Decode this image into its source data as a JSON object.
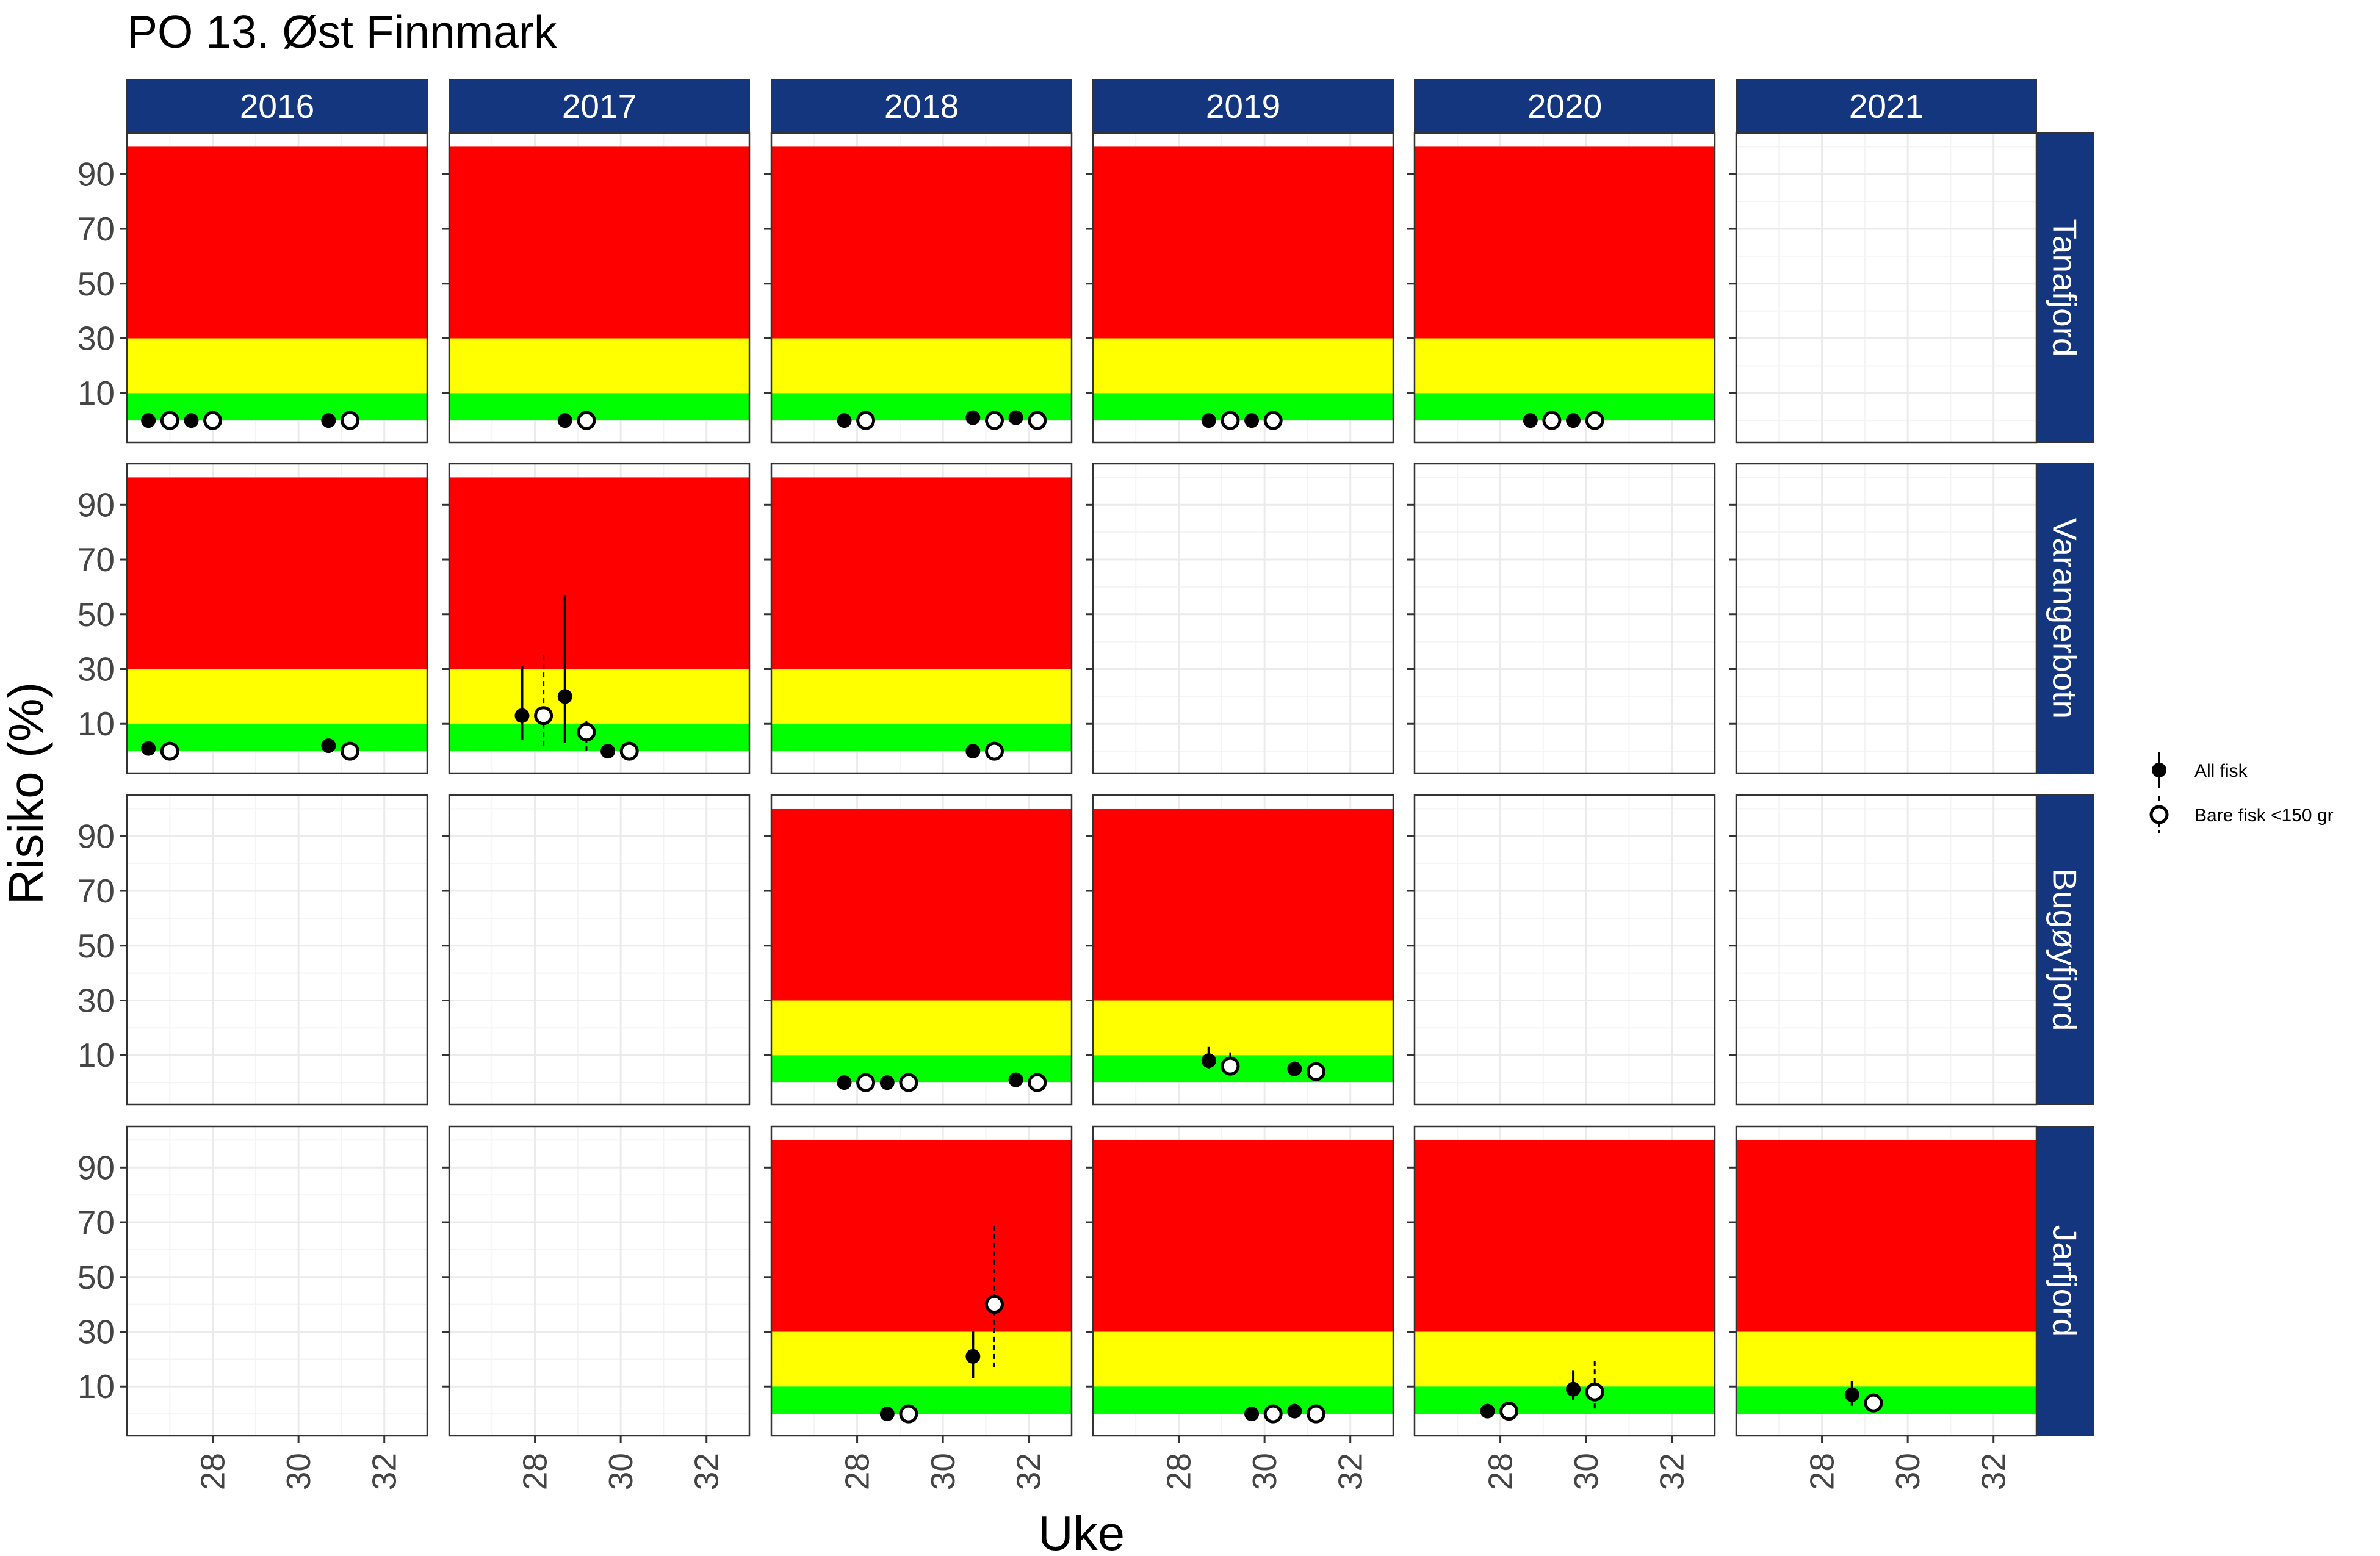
{
  "chart_data": {
    "type": "scatter",
    "title": "PO 13. Øst Finnmark",
    "xlabel": "Uke",
    "ylabel": "Risiko (%)",
    "xlim": [
      26,
      33
    ],
    "ylim": [
      -8,
      105
    ],
    "x_ticks": [
      28,
      30,
      32
    ],
    "y_ticks": [
      10,
      30,
      50,
      70,
      90
    ],
    "grid": true,
    "legend_position": "right",
    "risk_bands": [
      {
        "name": "green",
        "from": 0,
        "to": 10,
        "color": "#00FF00"
      },
      {
        "name": "yellow",
        "from": 10,
        "to": 30,
        "color": "#FFFF00"
      },
      {
        "name": "red",
        "from": 30,
        "to": 100,
        "color": "#FF0000"
      }
    ],
    "years": [
      "2016",
      "2017",
      "2018",
      "2019",
      "2020",
      "2021"
    ],
    "locations": [
      "Tanafjord",
      "Varangerbotn",
      "Bugøyfjord",
      "Jarfjord"
    ],
    "series": [
      {
        "name": "All fisk",
        "marker": "filled",
        "line": "solid"
      },
      {
        "name": "Bare fisk <150 gr",
        "marker": "open",
        "line": "dashed"
      }
    ],
    "panels": [
      {
        "location": "Tanafjord",
        "year": "2016",
        "bands": true,
        "all_fisk": [
          {
            "x": 26.5,
            "y": 0
          },
          {
            "x": 27.5,
            "y": 0
          },
          {
            "x": 30.7,
            "y": 0
          }
        ],
        "bare_fisk": [
          {
            "x": 27.0,
            "y": 0
          },
          {
            "x": 28.0,
            "y": 0
          },
          {
            "x": 31.2,
            "y": 0
          }
        ]
      },
      {
        "location": "Tanafjord",
        "year": "2017",
        "bands": true,
        "all_fisk": [
          {
            "x": 28.7,
            "y": 0
          }
        ],
        "bare_fisk": [
          {
            "x": 29.2,
            "y": 0
          }
        ]
      },
      {
        "location": "Tanafjord",
        "year": "2018",
        "bands": true,
        "all_fisk": [
          {
            "x": 27.7,
            "y": 0
          },
          {
            "x": 30.7,
            "y": 1
          },
          {
            "x": 31.7,
            "y": 1
          }
        ],
        "bare_fisk": [
          {
            "x": 28.2,
            "y": 0
          },
          {
            "x": 31.2,
            "y": 0
          },
          {
            "x": 32.2,
            "y": 0
          }
        ]
      },
      {
        "location": "Tanafjord",
        "year": "2019",
        "bands": true,
        "all_fisk": [
          {
            "x": 28.7,
            "y": 0
          },
          {
            "x": 29.7,
            "y": 0
          }
        ],
        "bare_fisk": [
          {
            "x": 29.2,
            "y": 0
          },
          {
            "x": 30.2,
            "y": 0
          }
        ]
      },
      {
        "location": "Tanafjord",
        "year": "2020",
        "bands": true,
        "all_fisk": [
          {
            "x": 28.7,
            "y": 0
          },
          {
            "x": 29.7,
            "y": 0
          }
        ],
        "bare_fisk": [
          {
            "x": 29.2,
            "y": 0
          },
          {
            "x": 30.2,
            "y": 0
          }
        ]
      },
      {
        "location": "Tanafjord",
        "year": "2021",
        "bands": false,
        "all_fisk": [],
        "bare_fisk": []
      },
      {
        "location": "Varangerbotn",
        "year": "2016",
        "bands": true,
        "all_fisk": [
          {
            "x": 26.5,
            "y": 1
          },
          {
            "x": 30.7,
            "y": 2
          }
        ],
        "bare_fisk": [
          {
            "x": 27.0,
            "y": 0
          },
          {
            "x": 31.2,
            "y": 0
          }
        ]
      },
      {
        "location": "Varangerbotn",
        "year": "2017",
        "bands": true,
        "all_fisk": [
          {
            "x": 27.7,
            "y": 13,
            "lo": 4,
            "hi": 31
          },
          {
            "x": 28.7,
            "y": 20,
            "lo": 3,
            "hi": 57
          },
          {
            "x": 29.7,
            "y": 0
          }
        ],
        "bare_fisk": [
          {
            "x": 28.2,
            "y": 13,
            "lo": 2,
            "hi": 35
          },
          {
            "x": 29.2,
            "y": 7,
            "lo": 0,
            "hi": 12
          },
          {
            "x": 30.2,
            "y": 0
          }
        ]
      },
      {
        "location": "Varangerbotn",
        "year": "2018",
        "bands": true,
        "all_fisk": [
          {
            "x": 30.7,
            "y": 0
          }
        ],
        "bare_fisk": [
          {
            "x": 31.2,
            "y": 0
          }
        ]
      },
      {
        "location": "Varangerbotn",
        "year": "2019",
        "bands": false,
        "all_fisk": [],
        "bare_fisk": []
      },
      {
        "location": "Varangerbotn",
        "year": "2020",
        "bands": false,
        "all_fisk": [],
        "bare_fisk": []
      },
      {
        "location": "Varangerbotn",
        "year": "2021",
        "bands": false,
        "all_fisk": [],
        "bare_fisk": []
      },
      {
        "location": "Bugøyfjord",
        "year": "2016",
        "bands": false,
        "all_fisk": [],
        "bare_fisk": []
      },
      {
        "location": "Bugøyfjord",
        "year": "2017",
        "bands": false,
        "all_fisk": [],
        "bare_fisk": []
      },
      {
        "location": "Bugøyfjord",
        "year": "2018",
        "bands": true,
        "all_fisk": [
          {
            "x": 27.7,
            "y": 0
          },
          {
            "x": 28.7,
            "y": 0
          },
          {
            "x": 31.7,
            "y": 1
          }
        ],
        "bare_fisk": [
          {
            "x": 28.2,
            "y": 0
          },
          {
            "x": 29.2,
            "y": 0
          },
          {
            "x": 32.2,
            "y": 0
          }
        ]
      },
      {
        "location": "Bugøyfjord",
        "year": "2019",
        "bands": true,
        "all_fisk": [
          {
            "x": 28.7,
            "y": 8,
            "lo": 5,
            "hi": 13
          },
          {
            "x": 30.7,
            "y": 5
          }
        ],
        "bare_fisk": [
          {
            "x": 29.2,
            "y": 6,
            "lo": 3,
            "hi": 11
          },
          {
            "x": 31.2,
            "y": 4
          }
        ]
      },
      {
        "location": "Bugøyfjord",
        "year": "2020",
        "bands": false,
        "all_fisk": [],
        "bare_fisk": []
      },
      {
        "location": "Bugøyfjord",
        "year": "2021",
        "bands": false,
        "all_fisk": [],
        "bare_fisk": []
      },
      {
        "location": "Jarfjord",
        "year": "2016",
        "bands": false,
        "all_fisk": [],
        "bare_fisk": []
      },
      {
        "location": "Jarfjord",
        "year": "2017",
        "bands": false,
        "all_fisk": [],
        "bare_fisk": []
      },
      {
        "location": "Jarfjord",
        "year": "2018",
        "bands": true,
        "all_fisk": [
          {
            "x": 28.7,
            "y": 0
          },
          {
            "x": 30.7,
            "y": 21,
            "lo": 13,
            "hi": 30
          }
        ],
        "bare_fisk": [
          {
            "x": 29.2,
            "y": 0
          },
          {
            "x": 31.2,
            "y": 40,
            "lo": 17,
            "hi": 70
          }
        ]
      },
      {
        "location": "Jarfjord",
        "year": "2019",
        "bands": true,
        "all_fisk": [
          {
            "x": 29.7,
            "y": 0
          },
          {
            "x": 30.7,
            "y": 1
          }
        ],
        "bare_fisk": [
          {
            "x": 30.2,
            "y": 0
          },
          {
            "x": 31.2,
            "y": 0
          }
        ]
      },
      {
        "location": "Jarfjord",
        "year": "2020",
        "bands": true,
        "all_fisk": [
          {
            "x": 27.7,
            "y": 1
          },
          {
            "x": 29.7,
            "y": 9,
            "lo": 5,
            "hi": 16
          }
        ],
        "bare_fisk": [
          {
            "x": 28.2,
            "y": 1
          },
          {
            "x": 30.2,
            "y": 8,
            "lo": 2,
            "hi": 20
          }
        ]
      },
      {
        "location": "Jarfjord",
        "year": "2021",
        "bands": true,
        "all_fisk": [
          {
            "x": 28.7,
            "y": 7,
            "lo": 3,
            "hi": 12
          }
        ],
        "bare_fisk": [
          {
            "x": 29.2,
            "y": 4,
            "lo": 2,
            "hi": 5
          }
        ]
      }
    ]
  },
  "colors": {
    "strip_bg": "#14367F",
    "strip_text": "#FFFFFF",
    "panel_border": "#333333",
    "grid_major": "#EBEBEB",
    "grid_minor": "#F4F4F4",
    "green": "#00FF00",
    "yellow": "#FFFF00",
    "red": "#FF0000",
    "point": "#000000"
  }
}
